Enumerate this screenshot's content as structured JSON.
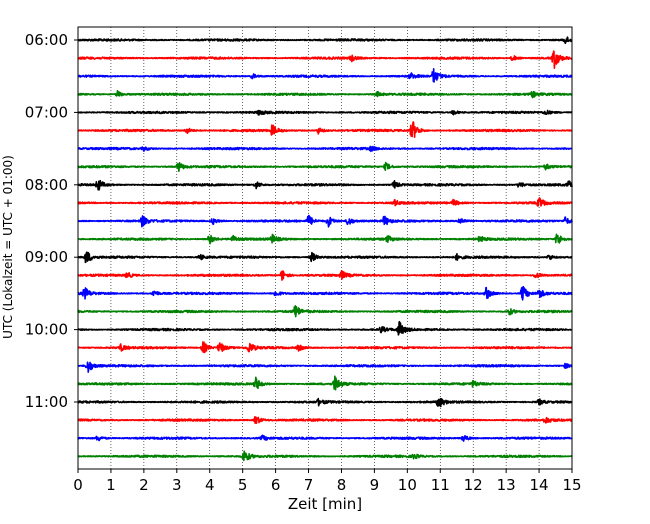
{
  "chart_data": {
    "type": "line",
    "chart_kind": "helicorder",
    "xlabel": "Zeit  [min]",
    "ylabel": "UTC (Lokalzeit = UTC + 01:00)",
    "xlim": [
      0,
      15
    ],
    "x_ticks": [
      0,
      1,
      2,
      3,
      4,
      5,
      6,
      7,
      8,
      9,
      10,
      11,
      12,
      13,
      14,
      15
    ],
    "grid": {
      "vertical_dotted": true
    },
    "row_interval_min": 15,
    "start_time": "06:00",
    "y_tick_labels": [
      "06:00",
      "07:00",
      "08:00",
      "09:00",
      "10:00",
      "11:00"
    ],
    "row_colors": [
      "#000000",
      "#ff0000",
      "#0000ff",
      "#008000"
    ],
    "rows": [
      {
        "start": "06:00",
        "color": "#000000",
        "events": [
          [
            14.8,
            0.45
          ]
        ]
      },
      {
        "start": "06:15",
        "color": "#ff0000",
        "events": [
          [
            14.45,
            1.3
          ],
          [
            8.3,
            0.35
          ],
          [
            13.2,
            0.35
          ]
        ]
      },
      {
        "start": "06:30",
        "color": "#0000ff",
        "events": [
          [
            10.8,
            0.9
          ],
          [
            10.1,
            0.4
          ],
          [
            5.3,
            0.3
          ]
        ]
      },
      {
        "start": "06:45",
        "color": "#008000",
        "events": [
          [
            1.2,
            0.4
          ],
          [
            9.1,
            0.3
          ],
          [
            13.8,
            0.3
          ]
        ]
      },
      {
        "start": "07:00",
        "color": "#000000",
        "events": [
          [
            5.5,
            0.3
          ],
          [
            11.4,
            0.3
          ],
          [
            14.2,
            0.3
          ]
        ]
      },
      {
        "start": "07:15",
        "color": "#ff0000",
        "events": [
          [
            10.15,
            1.4
          ],
          [
            5.9,
            0.7
          ],
          [
            3.3,
            0.4
          ],
          [
            7.3,
            0.4
          ]
        ]
      },
      {
        "start": "07:30",
        "color": "#0000ff",
        "events": [
          [
            2.0,
            0.25
          ],
          [
            8.9,
            0.25
          ]
        ]
      },
      {
        "start": "07:45",
        "color": "#008000",
        "events": [
          [
            3.05,
            0.6
          ],
          [
            9.35,
            0.5
          ],
          [
            14.2,
            0.35
          ]
        ]
      },
      {
        "start": "08:00",
        "color": "#000000",
        "events": [
          [
            0.6,
            0.8
          ],
          [
            5.4,
            0.5
          ],
          [
            9.6,
            0.5
          ],
          [
            13.4,
            0.4
          ],
          [
            14.9,
            0.4
          ]
        ]
      },
      {
        "start": "08:15",
        "color": "#ff0000",
        "events": [
          [
            14.0,
            0.6
          ],
          [
            11.4,
            0.4
          ],
          [
            9.6,
            0.4
          ]
        ]
      },
      {
        "start": "08:30",
        "color": "#0000ff",
        "events": [
          [
            7.0,
            0.7
          ],
          [
            7.6,
            0.7
          ],
          [
            8.2,
            0.6
          ],
          [
            9.3,
            0.6
          ],
          [
            1.95,
            0.7
          ],
          [
            11.6,
            0.5
          ],
          [
            14.8,
            0.5
          ],
          [
            4.1,
            0.4
          ]
        ]
      },
      {
        "start": "08:45",
        "color": "#008000",
        "events": [
          [
            14.55,
            0.9
          ],
          [
            4.0,
            0.6
          ],
          [
            5.9,
            0.5
          ],
          [
            4.7,
            0.4
          ],
          [
            9.4,
            0.35
          ],
          [
            12.2,
            0.35
          ]
        ]
      },
      {
        "start": "09:00",
        "color": "#000000",
        "events": [
          [
            0.25,
            0.9
          ],
          [
            7.1,
            0.6
          ],
          [
            3.7,
            0.35
          ],
          [
            11.5,
            0.35
          ],
          [
            14.3,
            0.35
          ]
        ]
      },
      {
        "start": "09:15",
        "color": "#ff0000",
        "events": [
          [
            6.2,
            0.7
          ],
          [
            8.0,
            0.5
          ],
          [
            13.9,
            0.4
          ],
          [
            1.5,
            0.35
          ]
        ]
      },
      {
        "start": "09:30",
        "color": "#0000ff",
        "events": [
          [
            0.2,
            0.7
          ],
          [
            12.4,
            0.8
          ],
          [
            13.5,
            1.0
          ],
          [
            14.0,
            0.6
          ],
          [
            2.3,
            0.4
          ],
          [
            6.0,
            0.4
          ]
        ]
      },
      {
        "start": "09:45",
        "color": "#008000",
        "events": [
          [
            6.6,
            0.8
          ],
          [
            13.1,
            0.4
          ]
        ]
      },
      {
        "start": "10:00",
        "color": "#000000",
        "events": [
          [
            9.75,
            1.0
          ],
          [
            9.2,
            0.4
          ]
        ]
      },
      {
        "start": "10:15",
        "color": "#ff0000",
        "events": [
          [
            3.8,
            0.8
          ],
          [
            4.3,
            0.8
          ],
          [
            5.2,
            0.7
          ],
          [
            1.3,
            0.4
          ],
          [
            6.7,
            0.35
          ]
        ]
      },
      {
        "start": "10:30",
        "color": "#0000ff",
        "events": [
          [
            0.3,
            0.9
          ],
          [
            14.8,
            0.3
          ]
        ]
      },
      {
        "start": "10:45",
        "color": "#008000",
        "events": [
          [
            7.8,
            1.0
          ],
          [
            5.4,
            0.8
          ],
          [
            12.0,
            0.35
          ]
        ]
      },
      {
        "start": "11:00",
        "color": "#000000",
        "events": [
          [
            10.95,
            0.75
          ],
          [
            7.3,
            0.35
          ],
          [
            14.0,
            0.35
          ]
        ]
      },
      {
        "start": "11:15",
        "color": "#ff0000",
        "events": [
          [
            5.4,
            0.6
          ],
          [
            14.2,
            0.35
          ]
        ]
      },
      {
        "start": "11:30",
        "color": "#0000ff",
        "events": [
          [
            11.7,
            0.5
          ],
          [
            0.6,
            0.4
          ],
          [
            5.6,
            0.3
          ]
        ]
      },
      {
        "start": "11:45",
        "color": "#008000",
        "events": [
          [
            5.05,
            0.8
          ],
          [
            10.2,
            0.3
          ]
        ]
      }
    ]
  }
}
